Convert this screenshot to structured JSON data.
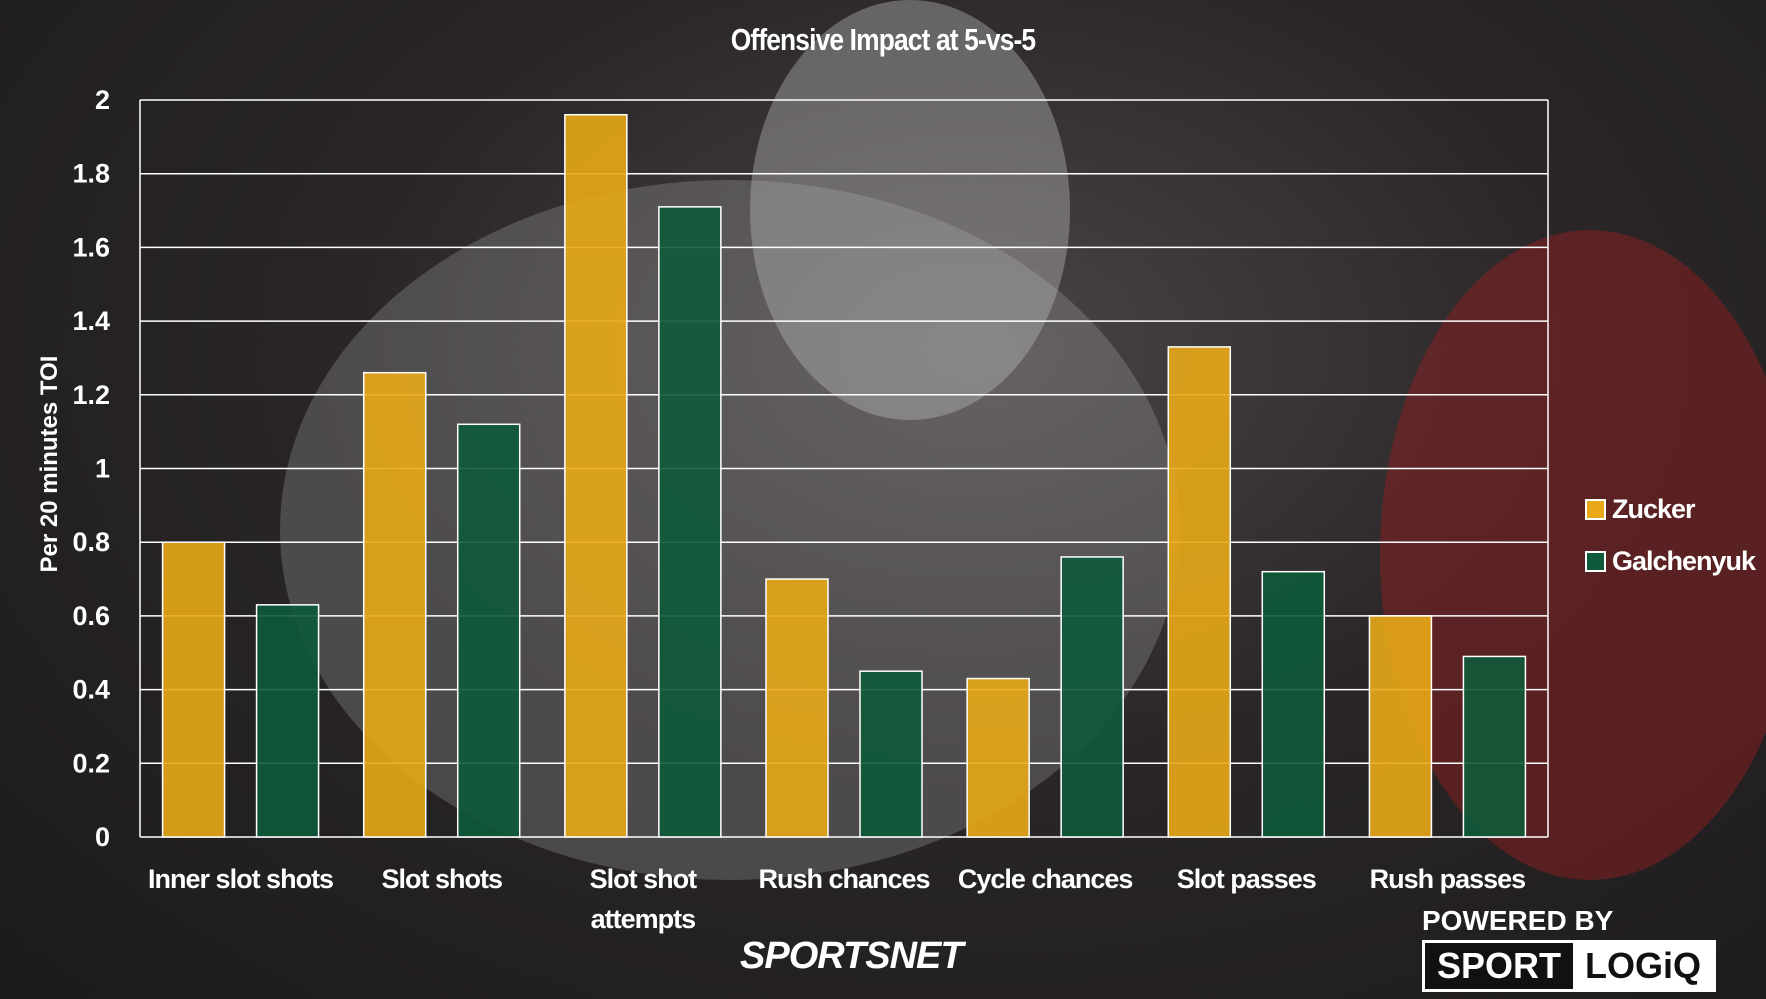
{
  "chart_data": {
    "type": "bar",
    "title": "Offensive Impact at 5-vs-5",
    "xlabel": "",
    "ylabel": "Per 20 minutes TOI",
    "ylim": [
      0,
      2
    ],
    "yticks": [
      "0",
      "0.2",
      "0.4",
      "0.6",
      "0.8",
      "1",
      "1.2",
      "1.4",
      "1.6",
      "1.8",
      "2"
    ],
    "grid": true,
    "legend_position": "right",
    "categories": [
      [
        "Inner slot shots"
      ],
      [
        "Slot shots"
      ],
      [
        "Slot shot",
        "attempts"
      ],
      [
        "Rush chances"
      ],
      [
        "Cycle chances"
      ],
      [
        "Slot passes"
      ],
      [
        "Rush passes"
      ]
    ],
    "series": [
      {
        "name": "Zucker",
        "color": "#e8a818",
        "values": [
          0.8,
          1.26,
          1.96,
          0.7,
          0.43,
          1.33,
          0.6
        ]
      },
      {
        "name": "Galchenyuk",
        "color": "#0e5a3a",
        "values": [
          0.63,
          1.12,
          1.71,
          0.45,
          0.76,
          0.72,
          0.49
        ]
      }
    ]
  },
  "branding": {
    "sportsnet": "SPORTSNET",
    "powered_by": "POWERED BY",
    "logiq_left": "SPORT",
    "logiq_right": "LOGiQ"
  }
}
